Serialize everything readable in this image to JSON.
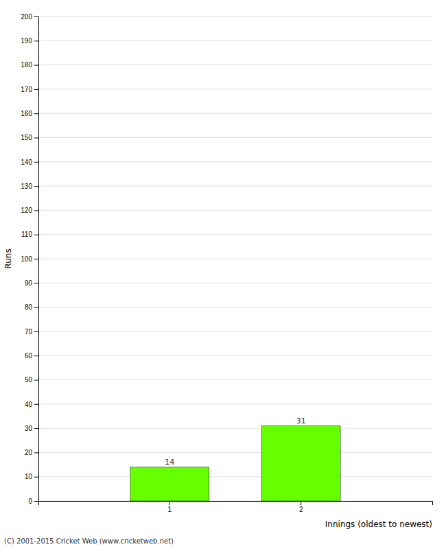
{
  "chart_data": {
    "type": "bar",
    "categories": [
      "1",
      "2"
    ],
    "values": [
      14,
      31
    ],
    "color": "#66ff00",
    "ylabel": "Runs",
    "xlabel": "Innings (oldest to newest)",
    "ylim": [
      0,
      200
    ],
    "yticks": [
      0,
      10,
      20,
      30,
      40,
      50,
      60,
      70,
      80,
      90,
      100,
      110,
      120,
      130,
      140,
      150,
      160,
      170,
      180,
      190,
      200
    ],
    "grid": true,
    "data_labels": true,
    "annotations": [
      "(C) 2001-2015 Cricket Web (www.cricketweb.net)"
    ]
  }
}
